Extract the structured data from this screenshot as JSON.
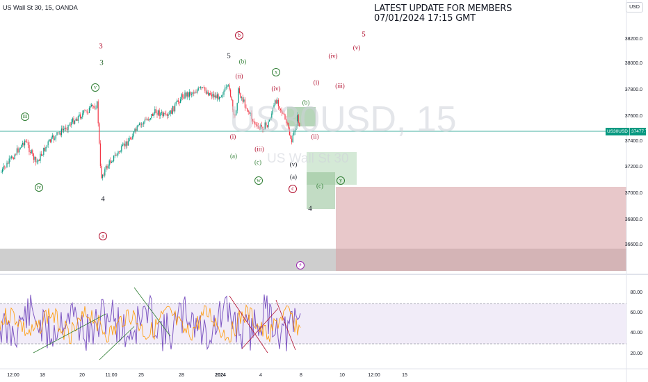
{
  "header": {
    "symbol_title": "US Wall St 30, 15, OANDA",
    "currency": "USD"
  },
  "note": {
    "line1": "LATEST UPDATE FOR MEMBERS",
    "line2": "07/01/2024 17:15 GMT"
  },
  "watermark": {
    "symbol": "US30USD, 15",
    "name": "US Wall St 30"
  },
  "price_axis": {
    "ticks": [
      "38200.0",
      "38000.0",
      "37800.0",
      "37600.0",
      "37400.0",
      "37200.0",
      "37000.0",
      "36800.0",
      "36600.0"
    ],
    "last_symbol": "US30USD",
    "last_price": "37477.7"
  },
  "oscillator_axis": {
    "ticks": [
      "80.00",
      "60.00",
      "40.00",
      "20.00"
    ]
  },
  "time_axis": {
    "ticks": [
      "12:00",
      "18",
      "20",
      "11:00",
      "25",
      "28",
      "2024",
      "4",
      "8",
      "10",
      "12:00",
      "15"
    ]
  },
  "wave_labels": [
    {
      "text": "3",
      "color": "#b2102f",
      "style": "big"
    },
    {
      "text": "3",
      "color": "#1b5e20",
      "style": "big"
    },
    {
      "text": "iii",
      "color": "#2e7d32",
      "style": "circ"
    },
    {
      "text": "v",
      "color": "#2e7d32",
      "style": "circ"
    },
    {
      "text": "iv",
      "color": "#2e7d32",
      "style": "circ"
    },
    {
      "text": "4",
      "color": "#131722",
      "style": "big"
    },
    {
      "text": "a",
      "color": "#b2102f",
      "style": "circ"
    },
    {
      "text": "b",
      "color": "#b2102f",
      "style": "circ"
    },
    {
      "text": "5",
      "color": "#131722",
      "style": "big"
    },
    {
      "text": "(b)",
      "color": "#2e7d32",
      "style": "plain"
    },
    {
      "text": "(ii)",
      "color": "#b2102f",
      "style": "plain"
    },
    {
      "text": "(i)",
      "color": "#b2102f",
      "style": "plain"
    },
    {
      "text": "(a)",
      "color": "#2e7d32",
      "style": "plain"
    },
    {
      "text": "(iii)",
      "color": "#b2102f",
      "style": "plain"
    },
    {
      "text": "(c)",
      "color": "#2e7d32",
      "style": "plain"
    },
    {
      "text": "w",
      "color": "#2e7d32",
      "style": "circ"
    },
    {
      "text": "x",
      "color": "#2e7d32",
      "style": "circ"
    },
    {
      "text": "(iv)",
      "color": "#b2102f",
      "style": "plain"
    },
    {
      "text": "(b)",
      "color": "#2e7d32",
      "style": "plain"
    },
    {
      "text": "(v)",
      "color": "#131722",
      "style": "plain"
    },
    {
      "text": "(a)",
      "color": "#131722",
      "style": "plain"
    },
    {
      "text": "c",
      "color": "#b2102f",
      "style": "circ"
    },
    {
      "text": "(ii)",
      "color": "#b2102f",
      "style": "plain"
    },
    {
      "text": "(c)",
      "color": "#2e7d32",
      "style": "plain"
    },
    {
      "text": "y",
      "color": "#2e7d32",
      "style": "circ"
    },
    {
      "text": "4",
      "color": "#131722",
      "style": "big"
    },
    {
      "text": "(i)",
      "color": "#b2102f",
      "style": "plain"
    },
    {
      "text": "(iii)",
      "color": "#b2102f",
      "style": "plain"
    },
    {
      "text": "(iv)",
      "color": "#b2102f",
      "style": "plain"
    },
    {
      "text": "(v)",
      "color": "#b2102f",
      "style": "plain"
    },
    {
      "text": "5",
      "color": "#b2102f",
      "style": "big"
    }
  ],
  "colors": {
    "up": "#089981",
    "down": "#f23645",
    "oscillator": "#7e57c2",
    "oscillator_signal": "#ff9800",
    "last_price_line": "#089981"
  },
  "icons": {
    "flash": "lightning-icon"
  }
}
